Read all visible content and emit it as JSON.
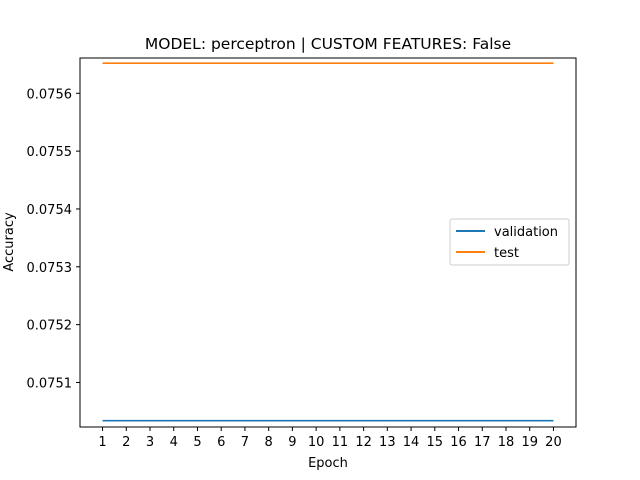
{
  "chart_data": {
    "type": "line",
    "title": "MODEL: perceptron | CUSTOM FEATURES: False",
    "xlabel": "Epoch",
    "ylabel": "Accuracy",
    "x": [
      1,
      2,
      3,
      4,
      5,
      6,
      7,
      8,
      9,
      10,
      11,
      12,
      13,
      14,
      15,
      16,
      17,
      18,
      19,
      20
    ],
    "xlim": [
      0.05,
      20.95
    ],
    "ylim": [
      0.075023,
      0.075661
    ],
    "yticks": [
      0.0751,
      0.0752,
      0.0753,
      0.0754,
      0.0755,
      0.0756
    ],
    "ytick_labels": [
      "0.0751",
      "0.0752",
      "0.0753",
      "0.0754",
      "0.0755",
      "0.0756"
    ],
    "series": [
      {
        "name": "validation",
        "color": "#1f77b4",
        "values": [
          0.075034,
          0.075034,
          0.075034,
          0.075034,
          0.075034,
          0.075034,
          0.075034,
          0.075034,
          0.075034,
          0.075034,
          0.075034,
          0.075034,
          0.075034,
          0.075034,
          0.075034,
          0.075034,
          0.075034,
          0.075034,
          0.075034,
          0.075034
        ]
      },
      {
        "name": "test",
        "color": "#ff7f0e",
        "values": [
          0.075652,
          0.075652,
          0.075652,
          0.075652,
          0.075652,
          0.075652,
          0.075652,
          0.075652,
          0.075652,
          0.075652,
          0.075652,
          0.075652,
          0.075652,
          0.075652,
          0.075652,
          0.075652,
          0.075652,
          0.075652,
          0.075652,
          0.075652
        ]
      }
    ],
    "legend_position": "center-right",
    "grid": false
  }
}
